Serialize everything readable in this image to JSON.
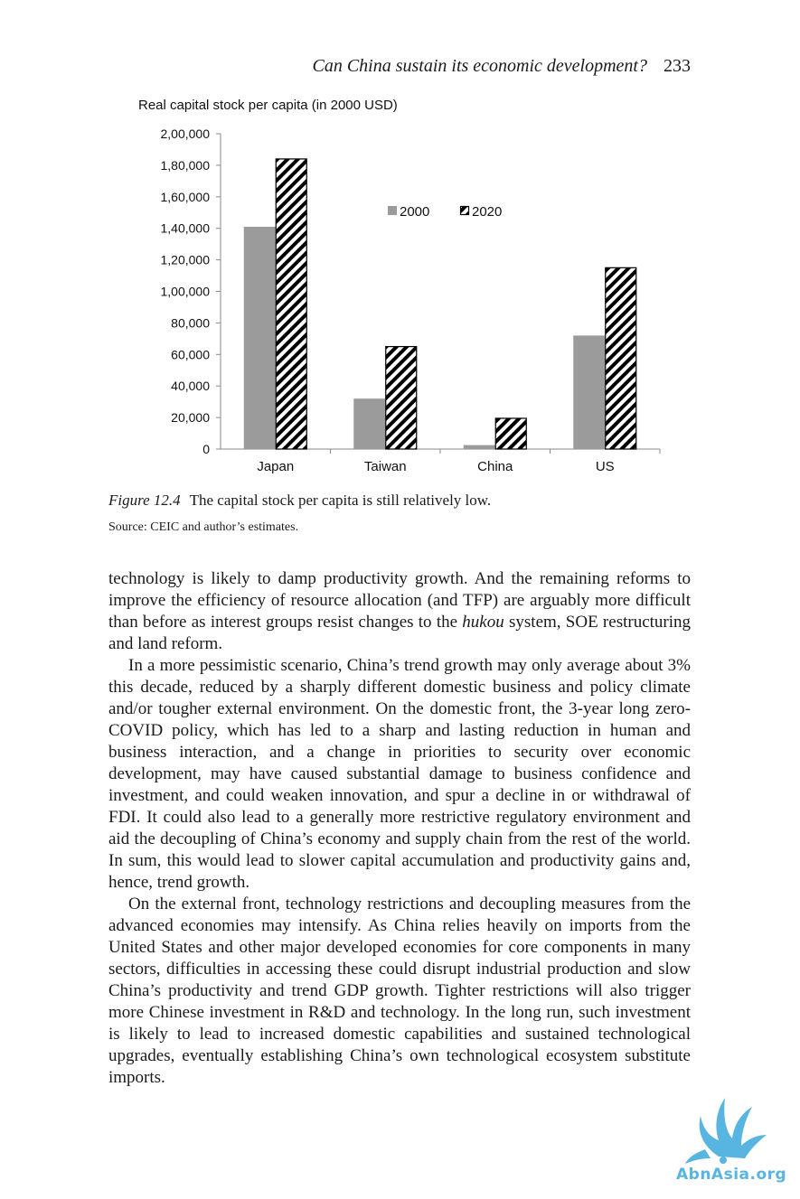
{
  "header": {
    "title": "Can China sustain its economic development?",
    "page_number": "233"
  },
  "figure": {
    "label": "Figure 12.4",
    "caption": "The capital stock per capita is still relatively low.",
    "source": "Source: CEIC and author’s estimates."
  },
  "chart_data": {
    "type": "bar",
    "title": "Real capital stock per capita (in 2000 USD)",
    "xlabel": "",
    "ylabel": "",
    "categories": [
      "Japan",
      "Taiwan",
      "China",
      "US"
    ],
    "series": [
      {
        "name": "2000",
        "values": [
          141000,
          32000,
          2500,
          72000
        ],
        "color": "#9b9b9b",
        "pattern": "solid"
      },
      {
        "name": "2020",
        "values": [
          184000,
          65000,
          19500,
          115000
        ],
        "color": "#000000",
        "pattern": "diagonal-hatch"
      }
    ],
    "ylim": [
      0,
      200000
    ],
    "yticks": [
      0,
      20000,
      40000,
      60000,
      80000,
      100000,
      120000,
      140000,
      160000,
      180000,
      200000
    ],
    "ytick_labels": [
      "0",
      "20,000",
      "40,000",
      "60,000",
      "80,000",
      "1,00,000",
      "1,20,000",
      "1,40,000",
      "1,60,000",
      "1,80,000",
      "2,00,000"
    ],
    "grid": false,
    "legend_position": "top-right"
  },
  "body": {
    "p1": "technology is likely to damp productivity growth. And the remaining reforms to improve the efficiency of resource allocation (and TFP) are arguably more difficult than before as interest groups resist changes to the",
    "p1_em": "hukou",
    "p1_end": "system, SOE restructuring and land reform.",
    "p2": "In a more pessimistic scenario, China’s trend growth may only average about 3% this decade, reduced by a sharply different domestic business and policy climate and/or tougher external environment. On the domestic front, the 3-year long zero-COVID policy, which has led to a sharp and lasting reduction in human and business interaction, and a change in priorities to security over economic development, may have caused substantial damage to business confidence and investment, and could weaken innovation, and spur a decline in or withdrawal of FDI. It could also lead to a generally more restrictive regulatory environment and aid the decoupling of China’s economy and supply chain from the rest of the world. In sum, this would lead to slower capital accumulation and productivity gains and, hence, trend growth.",
    "p3": "On the external front, technology restrictions and decoupling measures from the advanced economies may intensify. As China relies heavily on imports from the United States and other major developed economies for core components in many sectors, difficulties in accessing these could disrupt industrial production and slow China’s productivity and trend GDP growth. Tighter restrictions will also trigger more Chinese investment in R&D and technology. In the long run, such investment is likely to lead to increased domestic capabilities and sustained technological upgrades, eventually establishing China’s own technological ecosystem substitute imports."
  },
  "watermark": {
    "text": "AbnAsia.org",
    "color": "#58b4e0"
  }
}
